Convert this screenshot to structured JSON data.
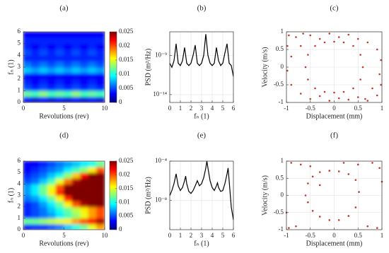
{
  "chart_data": [
    {
      "type": "heatmap",
      "title": "(a)",
      "x_label": "Revolutions (rev)",
      "y_label": "fₙ (1)",
      "x_bins": [
        0,
        1,
        2,
        3,
        4,
        5,
        6,
        7,
        8,
        9,
        10
      ],
      "y_bins": [
        0,
        0.5,
        1,
        1.5,
        2,
        2.5,
        3,
        3.5,
        4,
        4.5,
        5,
        5.5,
        6
      ],
      "z": [
        [
          0.003,
          0.002,
          0.003,
          0.002,
          0.003,
          0.002,
          0.003,
          0.002,
          0.003,
          0.002
        ],
        [
          0.012,
          0.011,
          0.013,
          0.011,
          0.012,
          0.011,
          0.013,
          0.011,
          0.012,
          0.011
        ],
        [
          0.005,
          0.004,
          0.005,
          0.004,
          0.005,
          0.004,
          0.005,
          0.004,
          0.005,
          0.004
        ],
        [
          0.004,
          0.003,
          0.004,
          0.003,
          0.004,
          0.003,
          0.004,
          0.003,
          0.004,
          0.003
        ],
        [
          0.003,
          0.003,
          0.003,
          0.003,
          0.003,
          0.003,
          0.003,
          0.003,
          0.003,
          0.003
        ],
        [
          0.008,
          0.007,
          0.008,
          0.007,
          0.008,
          0.007,
          0.008,
          0.007,
          0.008,
          0.007
        ],
        [
          0.006,
          0.005,
          0.006,
          0.005,
          0.006,
          0.005,
          0.006,
          0.005,
          0.006,
          0.005
        ],
        [
          0.004,
          0.004,
          0.004,
          0.004,
          0.004,
          0.004,
          0.004,
          0.004,
          0.004,
          0.004
        ],
        [
          0.005,
          0.004,
          0.005,
          0.004,
          0.005,
          0.004,
          0.005,
          0.004,
          0.005,
          0.004
        ],
        [
          0.004,
          0.003,
          0.004,
          0.003,
          0.004,
          0.003,
          0.004,
          0.003,
          0.004,
          0.003
        ],
        [
          0.004,
          0.004,
          0.004,
          0.004,
          0.004,
          0.004,
          0.004,
          0.004,
          0.004,
          0.004
        ],
        [
          0.003,
          0.003,
          0.003,
          0.003,
          0.003,
          0.003,
          0.003,
          0.003,
          0.003,
          0.003
        ]
      ],
      "xlim": [
        0,
        10
      ],
      "ylim": [
        0,
        6
      ],
      "xticks": [
        0,
        5,
        10
      ],
      "yticks": [
        0,
        1,
        2,
        3,
        4,
        5,
        6
      ],
      "colormap": "jet",
      "clim": [
        0,
        0.025
      ],
      "cticks": [
        0,
        0.005,
        0.01,
        0.015,
        0.02,
        0.025
      ],
      "grid": false
    },
    {
      "type": "line",
      "title": "(b)",
      "x_label": "fₙ (1)",
      "y_label": "PSD (m²/Hz)",
      "log_y": true,
      "color": "#000000",
      "x": [
        0,
        0.2,
        0.4,
        0.6,
        0.8,
        1.0,
        1.2,
        1.4,
        1.6,
        1.8,
        2.0,
        2.2,
        2.4,
        2.6,
        2.8,
        3.0,
        3.2,
        3.4,
        3.6,
        3.8,
        4.0,
        4.2,
        4.4,
        4.6,
        4.8,
        5.0,
        5.2,
        5.4,
        5.6,
        5.8,
        6.0
      ],
      "values": [
        1e-10,
        3e-11,
        2e-10,
        3e-08,
        1e-10,
        5e-11,
        2e-10,
        1e-08,
        1e-10,
        5e-11,
        1e-10,
        1e-09,
        2e-08,
        1e-10,
        5e-11,
        1e-10,
        1e-09,
        5e-07,
        1e-09,
        1e-10,
        5e-11,
        1e-10,
        1e-08,
        2e-10,
        5e-11,
        1e-10,
        2e-09,
        3e-08,
        1e-10,
        5e-11,
        2e-12
      ],
      "xlim": [
        0,
        6
      ],
      "ylim": [
        1e-15,
        1e-06
      ],
      "xticks": [
        0,
        1,
        2,
        3,
        4,
        5,
        6
      ],
      "yticks": [
        {
          "value": 1e-09,
          "label": "10⁻⁹"
        },
        {
          "value": 1e-14,
          "label": "10⁻¹⁴"
        }
      ],
      "grid": true
    },
    {
      "type": "scatter",
      "title": "(c)",
      "x_label": "Displacement (mm)",
      "y_label": "Velocity (m/s)",
      "color": "#c0392b",
      "x": [
        -0.95,
        -0.8,
        -0.65,
        -0.9,
        -0.7,
        -0.5,
        -0.3,
        -0.1,
        0.1,
        0.3,
        0.5,
        0.7,
        0.9,
        0.95,
        0.8,
        0.65,
        0.9,
        0.7,
        0.5,
        0.3,
        0.1,
        -0.1,
        -0.3,
        -0.5,
        -0.7,
        -0.9,
        -0.6,
        -0.55,
        -0.4,
        -0.2,
        0,
        0.2,
        0.4,
        0.55,
        0.6,
        0.55,
        0.4,
        0.2,
        0,
        -0.2,
        -0.4,
        -0.55,
        -0.98,
        0.98,
        -0.98,
        0.98
      ],
      "values": [
        0.9,
        0.85,
        0.95,
        0.3,
        0.6,
        0.9,
        0.8,
        0.95,
        0.85,
        0.92,
        0.8,
        0.7,
        0.5,
        -0.2,
        -0.6,
        -0.9,
        -0.8,
        -0.95,
        -0.85,
        -0.92,
        -0.88,
        -0.95,
        -0.82,
        -0.9,
        -0.75,
        -0.5,
        0,
        0.35,
        0.6,
        0.7,
        0.72,
        0.7,
        0.6,
        0.35,
        0,
        -0.35,
        -0.6,
        -0.7,
        -0.72,
        -0.7,
        -0.6,
        -0.35,
        -0.1,
        0.2,
        0.6,
        -0.5
      ],
      "xlim": [
        -1,
        1
      ],
      "ylim": [
        -1,
        1
      ],
      "xticks": [
        -1,
        -0.5,
        0,
        0.5,
        1
      ],
      "yticks": [
        -1,
        -0.5,
        0,
        0.5,
        1
      ],
      "grid": true
    },
    {
      "type": "heatmap",
      "title": "(d)",
      "x_label": "Revolutions (rev)",
      "y_label": "fₙ (1)",
      "x_bins": [
        0,
        1,
        2,
        3,
        4,
        5,
        6,
        7,
        8,
        9,
        10
      ],
      "y_bins": [
        0,
        0.5,
        1,
        1.5,
        2,
        2.5,
        3,
        3.5,
        4,
        4.5,
        5,
        5.5,
        6
      ],
      "z": [
        [
          0.003,
          0.004,
          0.004,
          0.005,
          0.006,
          0.008,
          0.01,
          0.012,
          0.015,
          0.018
        ],
        [
          0.012,
          0.012,
          0.013,
          0.014,
          0.015,
          0.016,
          0.018,
          0.02,
          0.022,
          0.024
        ],
        [
          0.004,
          0.005,
          0.006,
          0.007,
          0.009,
          0.011,
          0.013,
          0.015,
          0.018,
          0.02
        ],
        [
          0.004,
          0.005,
          0.006,
          0.008,
          0.01,
          0.012,
          0.014,
          0.016,
          0.018,
          0.02
        ],
        [
          0.004,
          0.005,
          0.007,
          0.009,
          0.012,
          0.016,
          0.02,
          0.024,
          0.025,
          0.025
        ],
        [
          0.006,
          0.007,
          0.009,
          0.012,
          0.016,
          0.021,
          0.025,
          0.025,
          0.025,
          0.025
        ],
        [
          0.007,
          0.009,
          0.012,
          0.016,
          0.021,
          0.025,
          0.025,
          0.025,
          0.025,
          0.025
        ],
        [
          0.007,
          0.009,
          0.012,
          0.015,
          0.02,
          0.025,
          0.025,
          0.025,
          0.025,
          0.025
        ],
        [
          0.005,
          0.006,
          0.008,
          0.011,
          0.015,
          0.019,
          0.024,
          0.025,
          0.025,
          0.025
        ],
        [
          0.004,
          0.005,
          0.006,
          0.008,
          0.01,
          0.013,
          0.017,
          0.022,
          0.025,
          0.025
        ],
        [
          0.003,
          0.004,
          0.005,
          0.006,
          0.007,
          0.009,
          0.011,
          0.013,
          0.016,
          0.02
        ],
        [
          0.003,
          0.003,
          0.004,
          0.005,
          0.006,
          0.007,
          0.008,
          0.009,
          0.01,
          0.012
        ]
      ],
      "xlim": [
        0,
        10
      ],
      "ylim": [
        0,
        6
      ],
      "xticks": [
        0,
        5,
        10
      ],
      "yticks": [
        0,
        1,
        2,
        3,
        4,
        5,
        6
      ],
      "colormap": "jet",
      "clim": [
        0,
        0.025
      ],
      "cticks": [
        0,
        0.005,
        0.01,
        0.015,
        0.02,
        0.025
      ],
      "grid": false
    },
    {
      "type": "line",
      "title": "(e)",
      "x_label": "fₙ (1)",
      "y_label": "PSD (m²/Hz)",
      "log_y": true,
      "color": "#000000",
      "x": [
        0,
        0.2,
        0.4,
        0.6,
        0.8,
        1.0,
        1.2,
        1.4,
        1.5,
        1.6,
        1.8,
        2.0,
        2.2,
        2.4,
        2.6,
        2.8,
        3.0,
        3.2,
        3.4,
        3.5,
        3.6,
        3.8,
        4.0,
        4.2,
        4.4,
        4.5,
        4.6,
        4.8,
        5.0,
        5.2,
        5.4,
        5.5,
        5.6,
        5.8,
        6.0
      ],
      "values": [
        3e-08,
        1e-07,
        5e-07,
        5e-06,
        3e-07,
        1e-07,
        2e-07,
        1e-06,
        3e-06,
        5e-07,
        8e-08,
        5e-08,
        1e-07,
        3e-07,
        1e-06,
        3e-07,
        5e-07,
        2e-06,
        2e-05,
        0.0001,
        2e-05,
        1e-06,
        2e-07,
        1e-07,
        3e-07,
        6e-07,
        2e-07,
        8e-08,
        1e-07,
        5e-07,
        5e-06,
        2e-05,
        1e-06,
        2e-09,
        1e-10
      ],
      "xlim": [
        0,
        6
      ],
      "ylim": [
        1e-11,
        0.0001
      ],
      "xticks": [
        0,
        1,
        2,
        3,
        4,
        5,
        6
      ],
      "yticks": [
        {
          "value": 0.0001,
          "label": "10⁻⁴"
        },
        {
          "value": 1e-08,
          "label": "10⁻⁸"
        }
      ],
      "grid": true
    },
    {
      "type": "scatter",
      "title": "(f)",
      "x_label": "Displacement (mm)",
      "y_label": "Velocity (m/s)",
      "color": "#c0392b",
      "x": [
        -0.6,
        -0.55,
        -0.45,
        -0.3,
        -0.1,
        0.1,
        0.3,
        0.45,
        0.52,
        0.45,
        0.3,
        0.1,
        -0.1,
        -0.3,
        -0.45,
        -0.55,
        -0.9,
        -0.7,
        -0.5,
        0.5,
        0.8,
        0.95,
        -0.95,
        -0.8,
        0.7,
        0.9,
        -0.3,
        0.2,
        -1,
        1
      ],
      "values": [
        0,
        0.35,
        0.55,
        0.68,
        0.72,
        0.7,
        0.62,
        0.45,
        0.1,
        -0.35,
        -0.6,
        -0.72,
        -0.72,
        -0.62,
        -0.45,
        -0.2,
        0.95,
        0.9,
        0.85,
        0.9,
        0.95,
        0.8,
        -0.95,
        -0.9,
        -0.9,
        -0.95,
        0.3,
        0.95,
        -0.5,
        0.4
      ],
      "xlim": [
        -1,
        1
      ],
      "ylim": [
        -1,
        1
      ],
      "xticks": [
        -1,
        -0.5,
        0,
        0.5,
        1
      ],
      "yticks": [
        -1,
        -0.5,
        0,
        0.5,
        1
      ],
      "grid": true
    }
  ]
}
